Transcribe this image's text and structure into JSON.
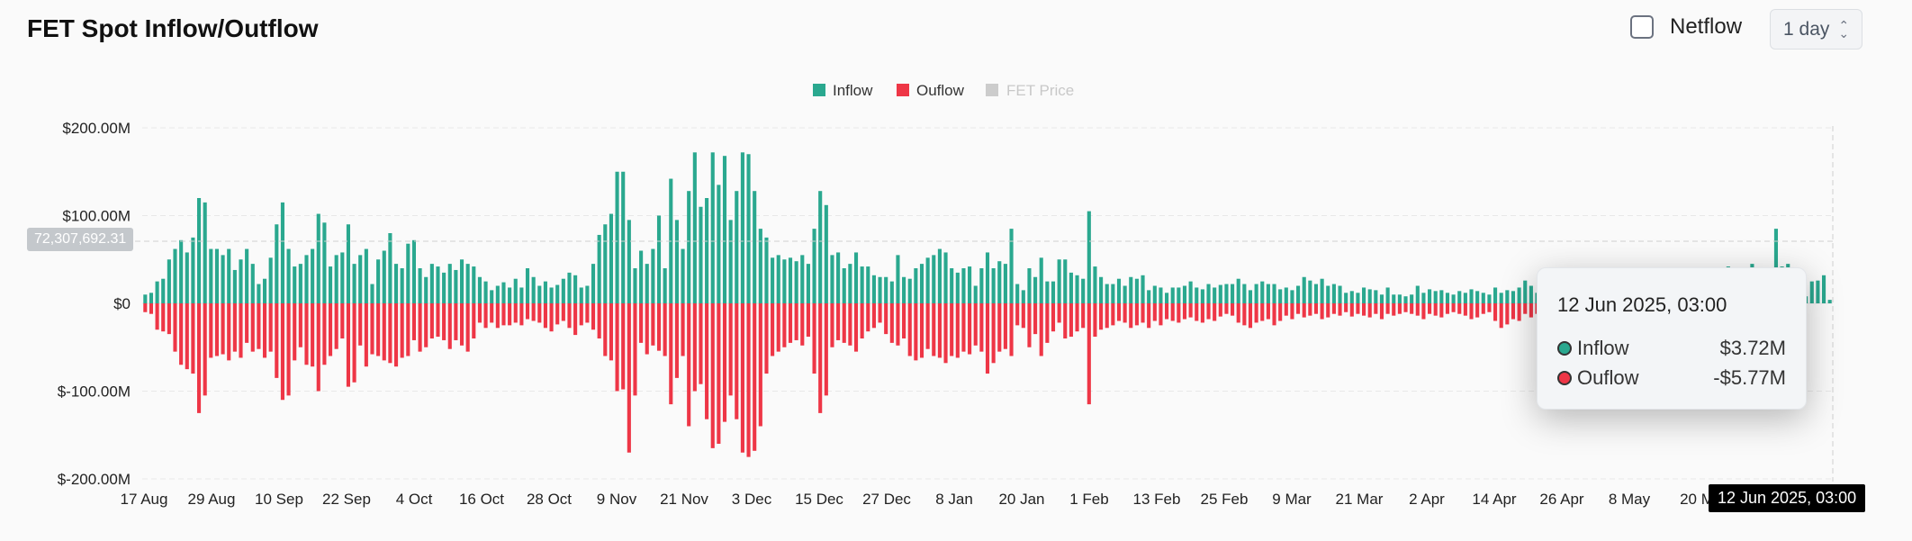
{
  "header": {
    "title": "FET Spot Inflow/Outflow",
    "netflow_label": "Netflow",
    "interval_label": "1 day"
  },
  "legend": {
    "inflow": "Inflow",
    "outflow": "Ouflow",
    "price": "FET Price"
  },
  "colors": {
    "inflow": "#2aa88f",
    "outflow": "#ee3646",
    "price_disabled": "#cccccc",
    "grid": "#e8e8e8"
  },
  "tooltip": {
    "date": "12 Jun 2025, 03:00",
    "inflow_label": "Inflow",
    "inflow_value": "$3.72M",
    "outflow_label": "Ouflow",
    "outflow_value": "-$5.77M"
  },
  "cursor_label": "12 Jun 2025, 03:00",
  "price_label": "72,307,692.31",
  "chart_data": {
    "type": "bar",
    "title": "FET Spot Inflow/Outflow",
    "y_ticks": [
      "$200.00M",
      "$100.00M",
      "$0",
      "$-100.00M",
      "$-200.00M"
    ],
    "ylim": [
      -200,
      200
    ],
    "y_unit": "$M",
    "x_ticks": [
      "17 Aug",
      "29 Aug",
      "10 Sep",
      "22 Sep",
      "4 Oct",
      "16 Oct",
      "28 Oct",
      "9 Nov",
      "21 Nov",
      "3 Dec",
      "15 Dec",
      "27 Dec",
      "8 Jan",
      "20 Jan",
      "1 Feb",
      "13 Feb",
      "25 Feb",
      "9 Mar",
      "21 Mar",
      "2 Apr",
      "14 Apr",
      "26 Apr",
      "8 May",
      "20 M"
    ],
    "legend_position": "top-center",
    "grid": true,
    "series": [
      {
        "name": "Inflow",
        "values": [
          10,
          12,
          25,
          28,
          50,
          62,
          72,
          58,
          75,
          120,
          115,
          62,
          62,
          55,
          62,
          38,
          50,
          62,
          45,
          22,
          28,
          52,
          90,
          115,
          62,
          42,
          45,
          55,
          62,
          102,
          92,
          42,
          55,
          58,
          90,
          45,
          55,
          62,
          22,
          50,
          60,
          80,
          45,
          40,
          68,
          72,
          40,
          30,
          45,
          42,
          35,
          45,
          38,
          50,
          45,
          42,
          30,
          25,
          15,
          20,
          24,
          18,
          28,
          18,
          40,
          30,
          20,
          25,
          18,
          21,
          28,
          35,
          32,
          18,
          20,
          45,
          78,
          90,
          102,
          150,
          150,
          95,
          40,
          60,
          45,
          62,
          100,
          40,
          142,
          95,
          62,
          128,
          172,
          110,
          120,
          172,
          135,
          168,
          95,
          128,
          172,
          170,
          128,
          85,
          75,
          52,
          55,
          50,
          52,
          48,
          55,
          45,
          85,
          128,
          112,
          55,
          58,
          40,
          45,
          58,
          42,
          42,
          32,
          30,
          30,
          25,
          55,
          30,
          28,
          40,
          45,
          52,
          55,
          62,
          58,
          40,
          35,
          40,
          42,
          20,
          40,
          58,
          40,
          48,
          45,
          85,
          22,
          15,
          40,
          30,
          52,
          25,
          25,
          50,
          50,
          35,
          32,
          28,
          105,
          42,
          30,
          22,
          22,
          28,
          20,
          30,
          28,
          32,
          15,
          20,
          18,
          12,
          18,
          18,
          20,
          25,
          18,
          16,
          22,
          18,
          21,
          22,
          22,
          28,
          22,
          15,
          22,
          25,
          22,
          22,
          16,
          18,
          15,
          20,
          30,
          26,
          22,
          28,
          20,
          22,
          20,
          12,
          14,
          12,
          18,
          16,
          15,
          10,
          18,
          10,
          10,
          8,
          10,
          20,
          12,
          16,
          14,
          15,
          12,
          10,
          14,
          12,
          16,
          14,
          12,
          10,
          18,
          12,
          15,
          14,
          18,
          26,
          20,
          12,
          24,
          12,
          16,
          14,
          30,
          12,
          12,
          15,
          14,
          12,
          18,
          12,
          14,
          20,
          18,
          12,
          24,
          14,
          10,
          12,
          14,
          18,
          16,
          22,
          18,
          24,
          22,
          28,
          32,
          18,
          20,
          42,
          25,
          22,
          20,
          45,
          22,
          30,
          24,
          85,
          42,
          45,
          20,
          35,
          8,
          25,
          26,
          32,
          4
        ]
      },
      {
        "name": "Ouflow",
        "values": [
          -10,
          -12,
          -30,
          -32,
          -35,
          -55,
          -70,
          -75,
          -80,
          -125,
          -105,
          -62,
          -60,
          -58,
          -65,
          -55,
          -62,
          -45,
          -55,
          -52,
          -62,
          -55,
          -85,
          -110,
          -105,
          -65,
          -50,
          -70,
          -72,
          -100,
          -70,
          -60,
          -52,
          -40,
          -95,
          -90,
          -48,
          -72,
          -58,
          -60,
          -65,
          -68,
          -72,
          -62,
          -60,
          -42,
          -55,
          -50,
          -40,
          -38,
          -42,
          -52,
          -42,
          -48,
          -55,
          -40,
          -22,
          -28,
          -22,
          -28,
          -25,
          -25,
          -22,
          -25,
          -18,
          -20,
          -22,
          -28,
          -32,
          -24,
          -20,
          -28,
          -36,
          -25,
          -22,
          -30,
          -40,
          -60,
          -65,
          -100,
          -98,
          -170,
          -105,
          -45,
          -58,
          -48,
          -54,
          -60,
          -115,
          -85,
          -60,
          -140,
          -100,
          -92,
          -132,
          -165,
          -160,
          -135,
          -105,
          -132,
          -170,
          -175,
          -168,
          -140,
          -80,
          -60,
          -55,
          -50,
          -45,
          -42,
          -48,
          -38,
          -80,
          -125,
          -105,
          -50,
          -42,
          -45,
          -48,
          -55,
          -40,
          -32,
          -28,
          -22,
          -35,
          -45,
          -48,
          -40,
          -60,
          -65,
          -62,
          -52,
          -60,
          -62,
          -68,
          -60,
          -62,
          -55,
          -58,
          -48,
          -55,
          -80,
          -68,
          -55,
          -52,
          -60,
          -25,
          -28,
          -50,
          -35,
          -60,
          -45,
          -32,
          -22,
          -40,
          -38,
          -32,
          -28,
          -115,
          -38,
          -30,
          -28,
          -25,
          -20,
          -22,
          -28,
          -25,
          -22,
          -28,
          -20,
          -25,
          -18,
          -20,
          -22,
          -18,
          -16,
          -20,
          -22,
          -18,
          -20,
          -15,
          -12,
          -14,
          -22,
          -25,
          -28,
          -22,
          -20,
          -18,
          -25,
          -20,
          -14,
          -18,
          -12,
          -16,
          -14,
          -12,
          -18,
          -16,
          -12,
          -14,
          -10,
          -15,
          -12,
          -14,
          -16,
          -12,
          -18,
          -12,
          -14,
          -12,
          -10,
          -12,
          -14,
          -18,
          -12,
          -14,
          -16,
          -12,
          -10,
          -12,
          -14,
          -18,
          -16,
          -12,
          -10,
          -20,
          -28,
          -24,
          -18,
          -20,
          -12,
          -16,
          -12,
          -14,
          -12,
          -18,
          -20,
          -16,
          -14,
          -12,
          -18,
          -14,
          -16,
          -18,
          -14,
          -12,
          -15,
          -18,
          -24,
          -18,
          -16,
          -20,
          -22,
          -25,
          -28,
          -30,
          -24,
          -20,
          -32,
          -22,
          -26,
          -28,
          -34,
          -22,
          -30,
          -28,
          -36,
          -28,
          -30,
          -20,
          -24,
          -12,
          -18,
          -24,
          -36,
          -6
        ]
      }
    ]
  }
}
